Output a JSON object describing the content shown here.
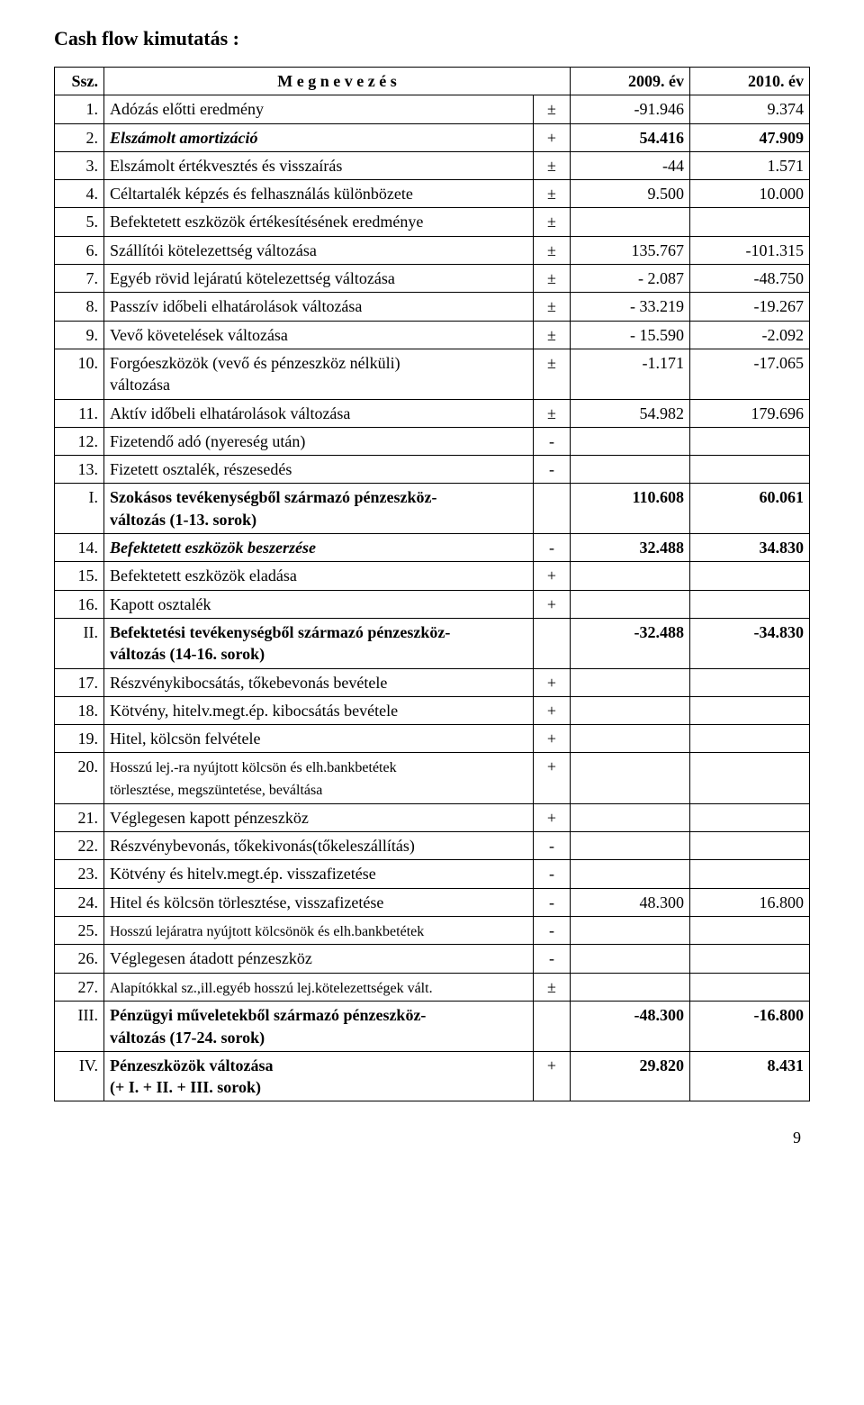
{
  "title": "Cash  flow  kimutatás :",
  "header": {
    "ssz": "Ssz.",
    "desc": "M e g n e v e z é s",
    "y1": "2009. év",
    "y2": "2010. év"
  },
  "rows": [
    {
      "n": "1.",
      "desc": "Adózás előtti eredmény",
      "sign": "±",
      "y1": "-91.946",
      "y2": "9.374",
      "style": ""
    },
    {
      "n": "2.",
      "desc": "Elszámolt amortizáció",
      "sign": "+",
      "y1": "54.416",
      "y2": "47.909",
      "style": "bolditalic"
    },
    {
      "n": "3.",
      "desc": "Elszámolt értékvesztés és visszaírás",
      "sign": "±",
      "y1": "-44",
      "y2": "1.571",
      "style": ""
    },
    {
      "n": "4.",
      "desc": "Céltartalék képzés és felhasználás különbözete",
      "sign": "±",
      "y1": "9.500",
      "y2": "10.000",
      "style": ""
    },
    {
      "n": "5.",
      "desc": "Befektetett eszközök értékesítésének eredménye",
      "sign": "±",
      "y1": "",
      "y2": "",
      "style": ""
    },
    {
      "n": "6.",
      "desc": "Szállítói kötelezettség változása",
      "sign": "±",
      "y1": "135.767",
      "y2": "-101.315",
      "style": ""
    },
    {
      "n": "7.",
      "desc": "Egyéb rövid lejáratú kötelezettség változása",
      "sign": "±",
      "y1": "- 2.087",
      "y2": "-48.750",
      "style": ""
    },
    {
      "n": "8.",
      "desc": "Passzív időbeli elhatárolások változása",
      "sign": "±",
      "y1": "- 33.219",
      "y2": "-19.267",
      "style": ""
    },
    {
      "n": "9.",
      "desc": "Vevő követelések változása",
      "sign": "±",
      "y1": "- 15.590",
      "y2": "-2.092",
      "style": ""
    },
    {
      "n": "10.",
      "desc": "Forgóeszközök (vevő és pénzeszköz nélküli)\nváltozása",
      "sign": "±",
      "y1": "-1.171",
      "y2": "-17.065",
      "style": ""
    },
    {
      "n": "11.",
      "desc": "Aktív időbeli elhatárolások változása",
      "sign": "±",
      "y1": "54.982",
      "y2": "179.696",
      "style": ""
    },
    {
      "n": "12.",
      "desc": "Fizetendő adó (nyereség után)",
      "sign": "-",
      "y1": "",
      "y2": "",
      "style": ""
    },
    {
      "n": "13.",
      "desc": "Fizetett osztalék, részesedés",
      "sign": "-",
      "y1": "",
      "y2": "",
      "style": ""
    },
    {
      "n": "I.",
      "desc": "Szokásos tevékenységből származó pénzeszköz-\nváltozás (1-13. sorok)",
      "sign": "",
      "y1": "110.608",
      "y2": "60.061",
      "style": "bold"
    },
    {
      "n": "14.",
      "desc": "Befektetett eszközök beszerzése",
      "sign": "-",
      "y1": "32.488",
      "y2": "34.830",
      "style": "bolditalic"
    },
    {
      "n": "15.",
      "desc": "Befektetett eszközök eladása",
      "sign": "+",
      "y1": "",
      "y2": "",
      "style": ""
    },
    {
      "n": "16.",
      "desc": "Kapott osztalék",
      "sign": "+",
      "y1": "",
      "y2": "",
      "style": ""
    },
    {
      "n": "II.",
      "desc": "Befektetési tevékenységből származó pénzeszköz-\nváltozás (14-16. sorok)",
      "sign": "",
      "y1": "-32.488",
      "y2": "-34.830",
      "style": "bold"
    },
    {
      "n": "17.",
      "desc": "Részvénykibocsátás, tőkebevonás bevétele",
      "sign": "+",
      "y1": "",
      "y2": "",
      "style": ""
    },
    {
      "n": "18.",
      "desc": "Kötvény, hitelv.megt.ép. kibocsátás bevétele",
      "sign": "+",
      "y1": "",
      "y2": "",
      "style": ""
    },
    {
      "n": "19.",
      "desc": "Hitel, kölcsön felvétele",
      "sign": "+",
      "y1": "",
      "y2": "",
      "style": ""
    },
    {
      "n": "20.",
      "desc": "Hosszú lej.-ra nyújtott kölcsön és elh.bankbetétek\ntörlesztése, megszüntetése, beváltása",
      "sign": "+",
      "y1": "",
      "y2": "",
      "style": "sub"
    },
    {
      "n": "21.",
      "desc": "Véglegesen kapott pénzeszköz",
      "sign": "+",
      "y1": "",
      "y2": "",
      "style": ""
    },
    {
      "n": "22.",
      "desc": "Részvénybevonás, tőkekivonás(tőkeleszállítás)",
      "sign": "-",
      "y1": "",
      "y2": "",
      "style": ""
    },
    {
      "n": "23.",
      "desc": "Kötvény és hitelv.megt.ép. visszafizetése",
      "sign": "-",
      "y1": "",
      "y2": "",
      "style": ""
    },
    {
      "n": "24.",
      "desc": "Hitel és kölcsön törlesztése, visszafizetése",
      "sign": "-",
      "y1": "48.300",
      "y2": "16.800",
      "style": ""
    },
    {
      "n": "25.",
      "desc": "Hosszú lejáratra nyújtott kölcsönök és elh.bankbetétek",
      "sign": "-",
      "y1": "",
      "y2": "",
      "style": "sub"
    },
    {
      "n": "26.",
      "desc": " Véglegesen átadott pénzeszköz",
      "sign": "-",
      "y1": "",
      "y2": "",
      "style": ""
    },
    {
      "n": "27.",
      "desc": "Alapítókkal sz.,ill.egyéb hosszú lej.kötelezettségek vált.",
      "sign": "±",
      "y1": "",
      "y2": "",
      "style": "sub"
    },
    {
      "n": "III.",
      "desc": "Pénzügyi műveletekből származó pénzeszköz-\nváltozás (17-24. sorok)",
      "sign": "",
      "y1": "-48.300",
      "y2": "-16.800",
      "style": "bold"
    },
    {
      "n": "IV.",
      "desc": "Pénzeszközök változása\n(+ I. + II. + III. sorok)",
      "sign": "+",
      "y1": "29.820",
      "y2": "8.431",
      "style": "bold"
    }
  ],
  "page_number": "9"
}
